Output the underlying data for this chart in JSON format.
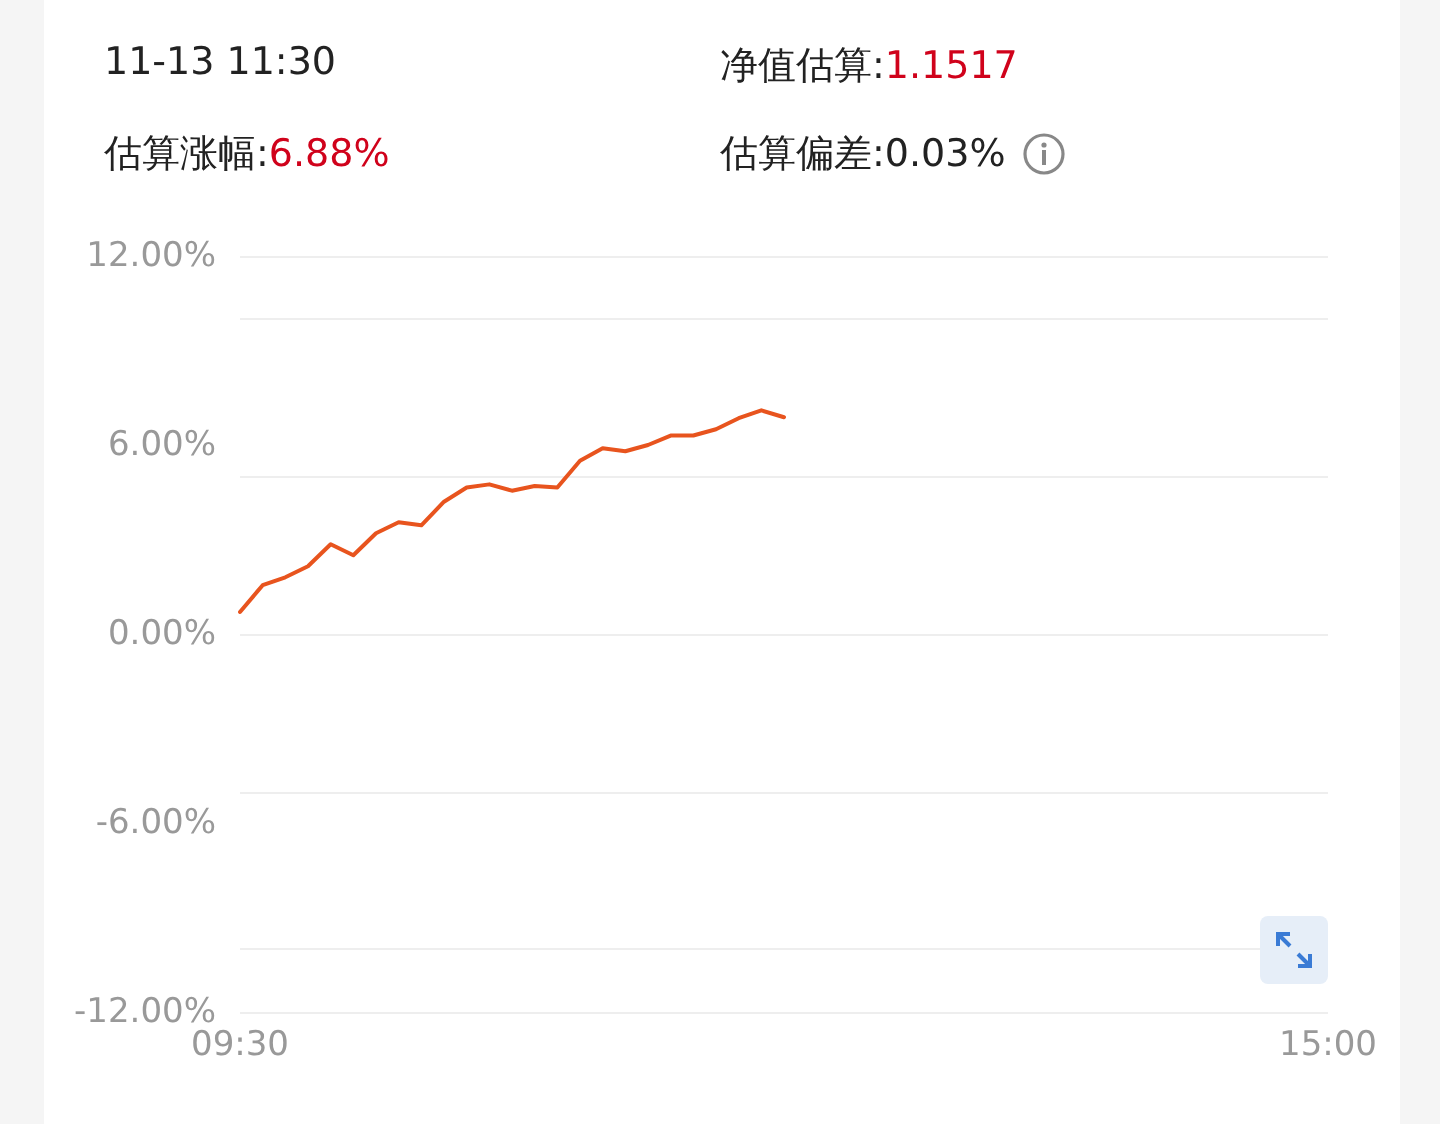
{
  "chart_data": {
    "type": "line",
    "title": "11-13 11:30",
    "annotations": [
      "净值估算:1.1517",
      "估算涨幅:6.88%",
      "估算偏差:0.03%"
    ],
    "categories": [
      "09:30",
      null,
      null,
      null,
      null,
      null,
      null,
      null,
      null,
      null,
      null,
      null,
      null,
      null,
      null,
      null,
      null,
      null,
      null,
      null,
      null,
      null,
      null,
      null,
      null,
      null,
      null,
      null,
      null,
      null,
      null,
      null,
      null,
      null,
      null,
      null,
      null,
      null,
      null,
      null,
      null,
      null,
      null,
      null,
      null,
      null,
      null,
      null,
      "15:00"
    ],
    "series": [
      {
        "color": "#e8541e",
        "values": [
          0.7,
          1.55,
          1.8,
          2.15,
          2.85,
          2.5,
          3.2,
          3.55,
          3.45,
          4.2,
          4.65,
          4.75,
          4.55,
          4.7,
          4.65,
          5.5,
          5.9,
          5.8,
          6.0,
          6.3,
          6.3,
          6.5,
          6.85,
          7.1,
          6.88,
          null,
          null,
          null,
          null,
          null,
          null,
          null,
          null,
          null,
          null,
          null,
          null,
          null,
          null,
          null,
          null,
          null,
          null,
          null,
          null,
          null,
          null,
          null,
          null
        ]
      }
    ],
    "ylim": [
      -12,
      12
    ],
    "yticks": [
      {
        "value": -12,
        "label": "-12.00%"
      },
      {
        "value": -6,
        "label": "-6.00%"
      },
      {
        "value": 0,
        "label": "0.00%"
      },
      {
        "value": 6,
        "label": "6.00%"
      },
      {
        "value": 12,
        "label": "12.00%"
      }
    ],
    "grid": "y",
    "marker": "none",
    "line_style": "solid"
  }
}
